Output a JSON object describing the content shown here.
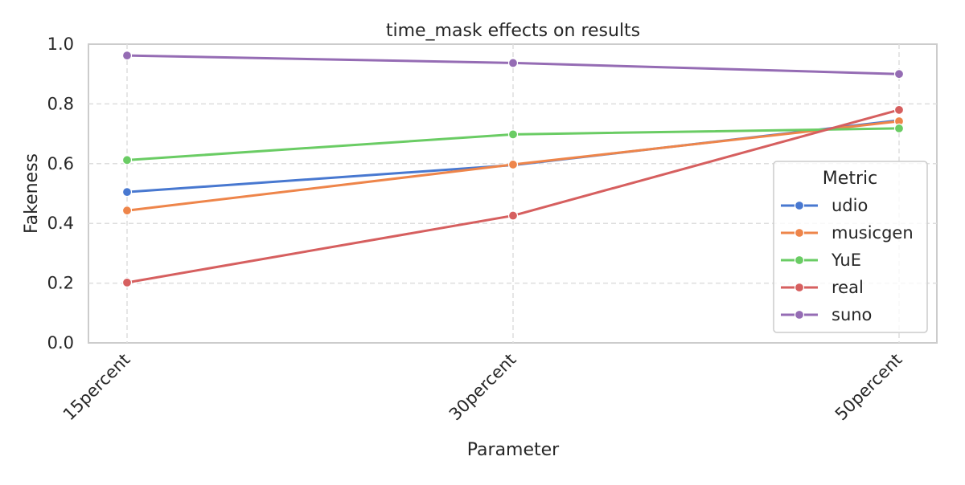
{
  "chart_data": {
    "type": "line",
    "title": "time_mask effects on results",
    "xlabel": "Parameter",
    "ylabel": "Fakeness",
    "categories": [
      "15percent",
      "30percent",
      "50percent"
    ],
    "ylim": [
      0.0,
      1.0
    ],
    "yticks": [
      "0.0",
      "0.2",
      "0.4",
      "0.6",
      "0.8",
      "1.0"
    ],
    "grid": true,
    "legend": {
      "title": "Metric",
      "placement": "right"
    },
    "series": [
      {
        "name": "udio",
        "color": "#4878d0",
        "values": [
          0.505,
          0.595,
          0.745
        ]
      },
      {
        "name": "musicgen",
        "color": "#ee854a",
        "values": [
          0.443,
          0.597,
          0.742
        ]
      },
      {
        "name": "YuE",
        "color": "#6acc64",
        "values": [
          0.612,
          0.698,
          0.718
        ]
      },
      {
        "name": "real",
        "color": "#d65f5f",
        "values": [
          0.202,
          0.426,
          0.78
        ]
      },
      {
        "name": "suno",
        "color": "#956cb4",
        "values": [
          0.962,
          0.937,
          0.9
        ]
      }
    ]
  }
}
